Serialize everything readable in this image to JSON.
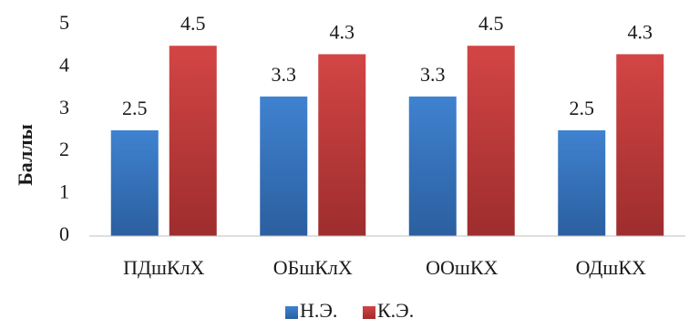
{
  "chart_data": {
    "type": "bar",
    "title": "",
    "xlabel": "",
    "ylabel": "Баллы",
    "ylim": [
      0,
      5
    ],
    "yticks": [
      0,
      1,
      2,
      3,
      4,
      5
    ],
    "categories": [
      "ПДшКлХ",
      "ОБшКлХ",
      "ООшКХ",
      "ОДшКХ"
    ],
    "series": [
      {
        "name": "Н.Э.",
        "values": [
          2.5,
          3.3,
          3.3,
          2.5
        ],
        "color": "#3a78c3"
      },
      {
        "name": "К.Э.",
        "values": [
          4.5,
          4.3,
          4.5,
          4.3
        ],
        "color": "#c73a3a"
      }
    ],
    "data_labels": [
      [
        "2.5",
        "3.3",
        "3.3",
        "2.5"
      ],
      [
        "4.5",
        "4.3",
        "4.5",
        "4.3"
      ]
    ],
    "grid": false,
    "legend": "bottom"
  }
}
